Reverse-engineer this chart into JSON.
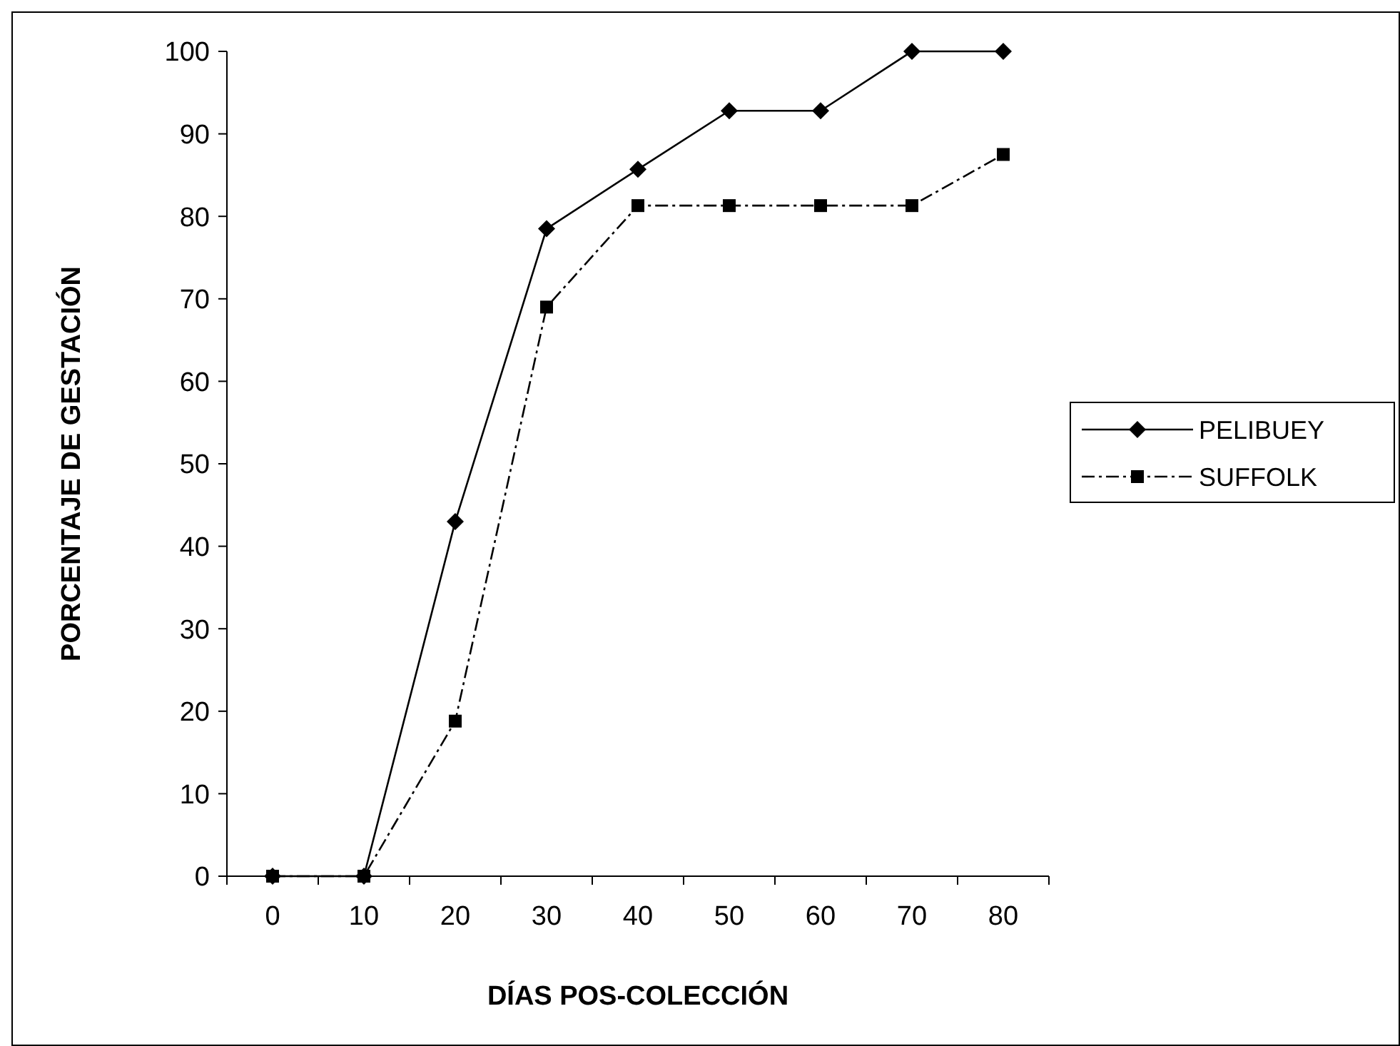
{
  "chart_data": {
    "type": "line",
    "xlabel": "DÍAS POS-COLECCIÓN",
    "ylabel": "PORCENTAJE DE GESTACIÓN",
    "categories": [
      "0",
      "10",
      "20",
      "30",
      "40",
      "50",
      "60",
      "70",
      "80"
    ],
    "ylim": [
      0,
      100
    ],
    "yticks": [
      0,
      10,
      20,
      30,
      40,
      50,
      60,
      70,
      80,
      90,
      100
    ],
    "grid": false,
    "legend": "right",
    "series": [
      {
        "name": "PELIBUEY",
        "color": "#000000",
        "marker": "diamond",
        "line_style": "solid",
        "values": [
          0,
          0,
          43,
          78.5,
          85.7,
          92.8,
          92.8,
          100,
          100
        ]
      },
      {
        "name": "SUFFOLK",
        "color": "#000000",
        "marker": "square",
        "line_style": "dashed",
        "values": [
          0,
          0,
          18.8,
          69,
          81.3,
          81.3,
          81.3,
          81.3,
          87.5
        ]
      }
    ]
  }
}
